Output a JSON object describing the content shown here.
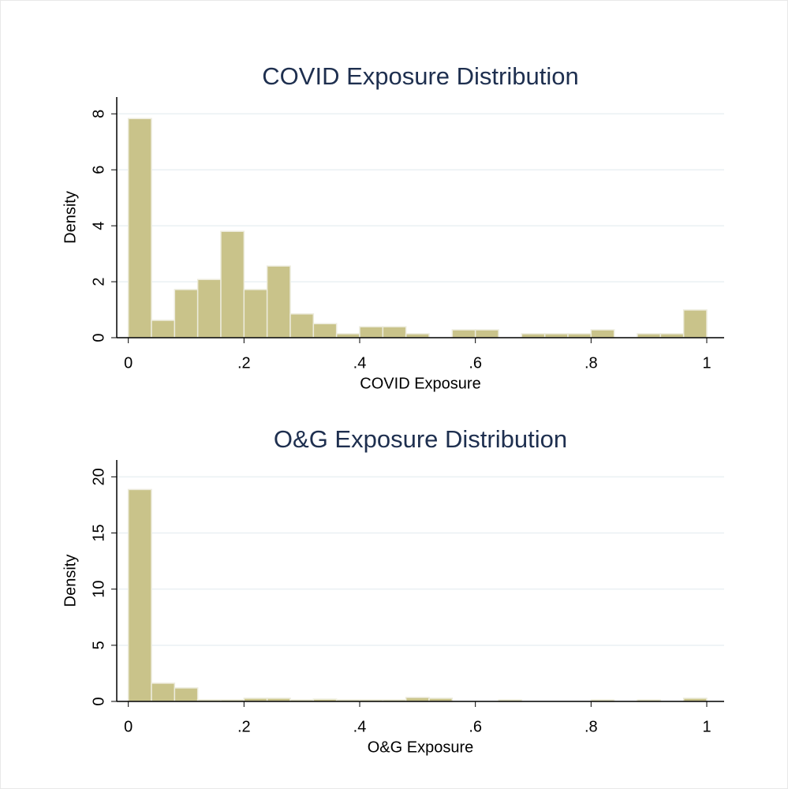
{
  "chart_data": [
    {
      "type": "histogram",
      "title": "COVID Exposure Distribution",
      "x_label": "COVID Exposure",
      "y_label": "Density",
      "color": "#c9c38a",
      "bins": [
        0,
        0.04,
        0.08,
        0.12,
        0.16,
        0.2,
        0.24,
        0.28,
        0.32,
        0.36,
        0.4,
        0.44,
        0.48,
        0.52,
        0.56,
        0.6,
        0.64,
        0.68,
        0.72,
        0.76,
        0.8,
        0.84,
        0.88,
        0.92,
        0.96,
        1
      ],
      "values": [
        7.83,
        0.62,
        1.72,
        2.08,
        3.8,
        1.72,
        2.56,
        0.85,
        0.5,
        0.14,
        0.39,
        0.39,
        0.14,
        0,
        0.28,
        0.28,
        0,
        0.14,
        0.14,
        0.14,
        0.28,
        0,
        0.14,
        0.14,
        0.99
      ],
      "xlim": [
        -0.02,
        1.03
      ],
      "ylim": [
        0,
        8.6
      ],
      "xticks": [
        0,
        {
          "value": 0.2,
          "label": ".2"
        },
        {
          "value": 0.4,
          "label": ".4"
        },
        {
          "value": 0.6,
          "label": ".6"
        },
        {
          "value": 0.8,
          "label": ".8"
        },
        1
      ],
      "yticks": [
        0,
        2,
        4,
        6,
        8
      ],
      "grid": true
    },
    {
      "type": "histogram",
      "title": "O&G Exposure Distribution",
      "x_label": "O&G Exposure",
      "y_label": "Density",
      "color": "#c9c38a",
      "bins": [
        0,
        0.04,
        0.08,
        0.12,
        0.16,
        0.2,
        0.24,
        0.28,
        0.32,
        0.36,
        0.4,
        0.44,
        0.48,
        0.52,
        0.56,
        0.6,
        0.64,
        0.68,
        0.72,
        0.76,
        0.8,
        0.84,
        0.88,
        0.92,
        0.96,
        1
      ],
      "values": [
        18.87,
        1.62,
        1.2,
        0.14,
        0.14,
        0.28,
        0.28,
        0.14,
        0.2,
        0.14,
        0.14,
        0.14,
        0.35,
        0.28,
        0,
        0,
        0.14,
        0,
        0,
        0,
        0.14,
        0,
        0.14,
        0,
        0.28
      ],
      "xlim": [
        -0.02,
        1.03
      ],
      "ylim": [
        0,
        21.5
      ],
      "xticks": [
        0,
        {
          "value": 0.2,
          "label": ".2"
        },
        {
          "value": 0.4,
          "label": ".4"
        },
        {
          "value": 0.6,
          "label": ".6"
        },
        {
          "value": 0.8,
          "label": ".8"
        },
        1
      ],
      "yticks": [
        0,
        5,
        10,
        15,
        20
      ],
      "grid": true
    }
  ]
}
